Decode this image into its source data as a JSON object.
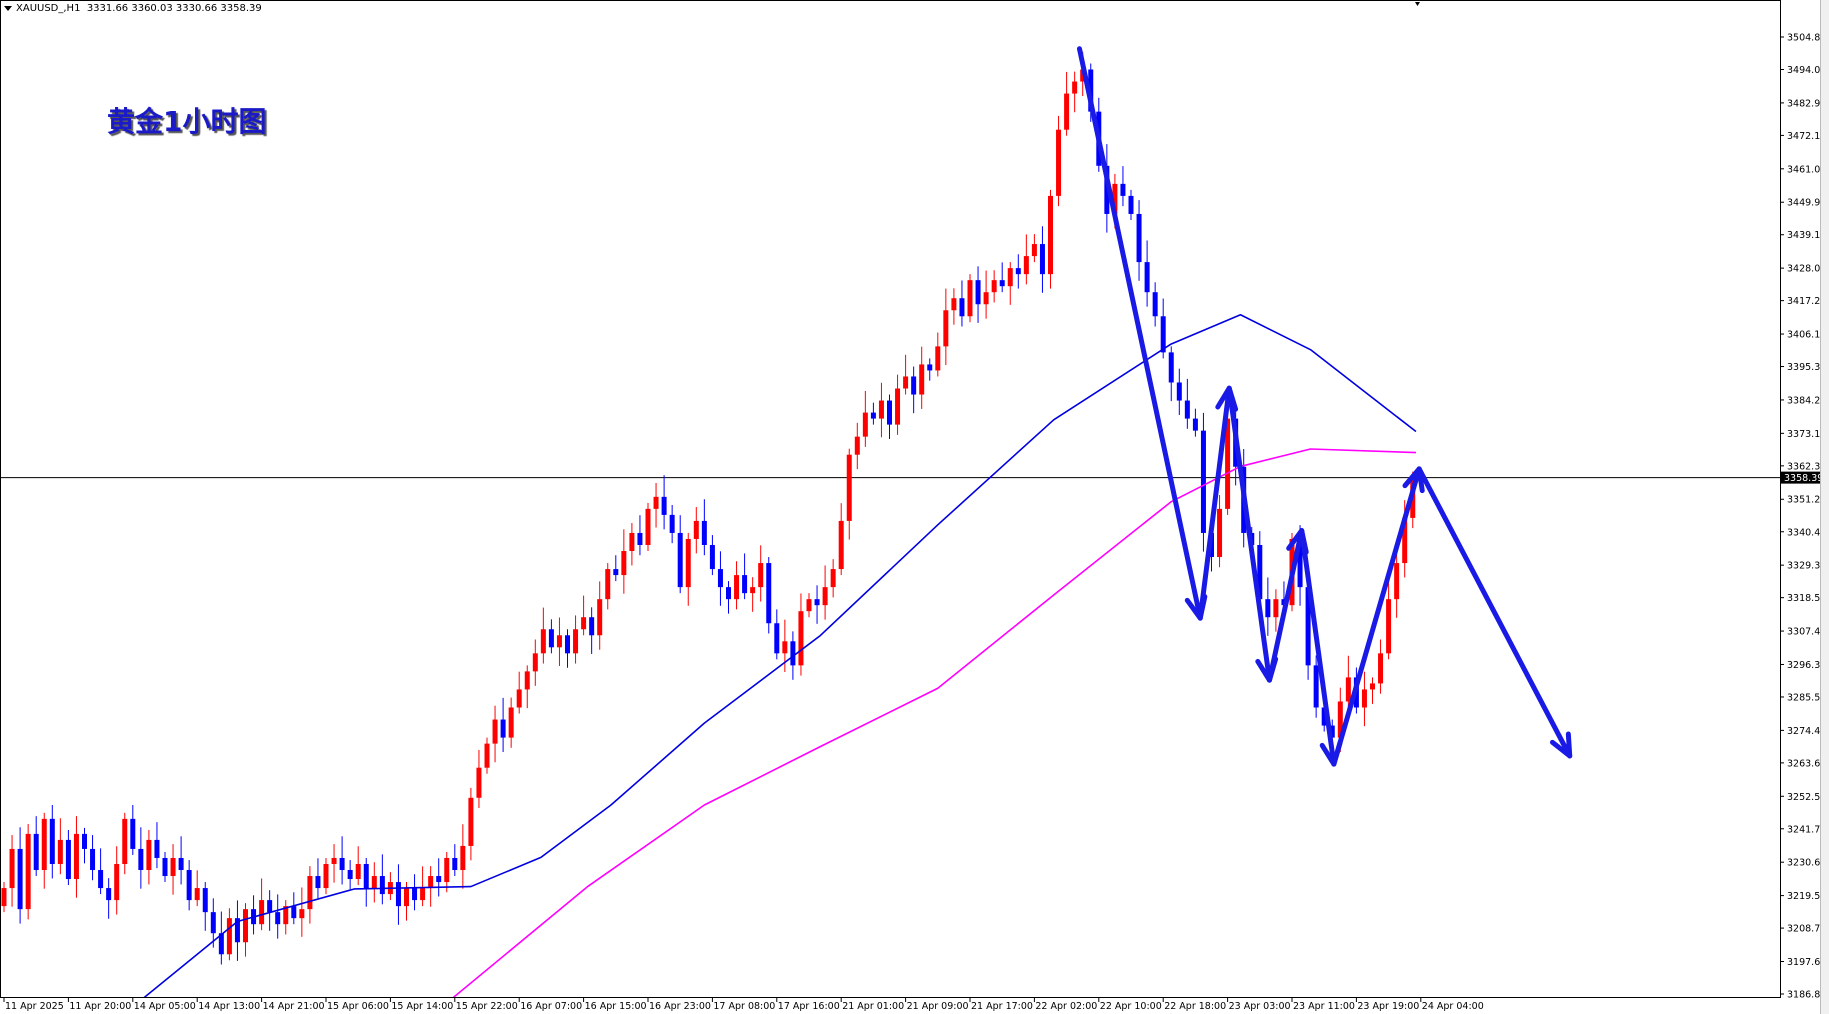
{
  "header": {
    "symbol": "XAUUSD_,H1",
    "ohlc": "3331.66 3360.03 3330.66 3358.39"
  },
  "annotation_title": "黄金1小时图",
  "colors": {
    "bull": "#ff0000",
    "bear": "#0000ff",
    "ma_fast": "#0000e0",
    "ma_slow": "#ff00ff",
    "arrows": "#1a1ae6",
    "price_line": "#000000"
  },
  "chart_data": {
    "type": "candlestick",
    "title": "",
    "ylim": [
      3186.8,
      3504.8
    ],
    "y_ticks": [
      "3504.80",
      "3494.00",
      "3482.90",
      "3472.10",
      "3461.00",
      "3449.90",
      "3439.10",
      "3428.00",
      "3417.20",
      "3406.10",
      "3395.30",
      "3384.20",
      "3373.10",
      "3362.30",
      "3351.20",
      "3340.40",
      "3329.30",
      "3318.50",
      "3307.40",
      "3296.30",
      "3285.50",
      "3274.40",
      "3263.60",
      "3252.50",
      "3241.70",
      "3230.60",
      "3219.50",
      "3208.70",
      "3197.60",
      "3186.80"
    ],
    "x_ticks": [
      "11 Apr 2025",
      "11 Apr 20:00",
      "14 Apr 05:00",
      "14 Apr 13:00",
      "14 Apr 21:00",
      "15 Apr 06:00",
      "15 Apr 14:00",
      "15 Apr 22:00",
      "16 Apr 07:00",
      "16 Apr 15:00",
      "16 Apr 23:00",
      "17 Apr 08:00",
      "17 Apr 16:00",
      "21 Apr 01:00",
      "21 Apr 09:00",
      "21 Apr 17:00",
      "22 Apr 02:00",
      "22 Apr 10:00",
      "22 Apr 18:00",
      "23 Apr 03:00",
      "23 Apr 11:00",
      "23 Apr 19:00",
      "24 Apr 04:00"
    ],
    "x_tick_every_bars": 8,
    "current_price": "3358.39",
    "closes": [
      3222,
      3235,
      3215,
      3240,
      3228,
      3245,
      3230,
      3238,
      3225,
      3240,
      3235,
      3228,
      3222,
      3218,
      3230,
      3245,
      3235,
      3228,
      3238,
      3232,
      3226,
      3232,
      3228,
      3218,
      3222,
      3214,
      3207,
      3200,
      3212,
      3204,
      3215,
      3210,
      3218,
      3214,
      3210,
      3216,
      3212,
      3215,
      3226,
      3222,
      3230,
      3232,
      3228,
      3225,
      3230,
      3222,
      3226,
      3220,
      3224,
      3216,
      3222,
      3218,
      3222,
      3226,
      3224,
      3232,
      3228,
      3236,
      3252,
      3262,
      3270,
      3278,
      3272,
      3282,
      3288,
      3294,
      3300,
      3308,
      3302,
      3306,
      3300,
      3308,
      3312,
      3306,
      3318,
      3328,
      3326,
      3334,
      3340,
      3336,
      3348,
      3352,
      3346,
      3340,
      3322,
      3338,
      3344,
      3336,
      3328,
      3322,
      3318,
      3326,
      3320,
      3322,
      3330,
      3310,
      3300,
      3304,
      3296,
      3314,
      3318,
      3316,
      3322,
      3328,
      3344,
      3366,
      3372,
      3380,
      3378,
      3384,
      3376,
      3388,
      3392,
      3386,
      3396,
      3394,
      3402,
      3414,
      3418,
      3412,
      3424,
      3416,
      3420,
      3424,
      3422,
      3428,
      3426,
      3432,
      3436,
      3426,
      3452,
      3474,
      3486,
      3490,
      3494,
      3480,
      3462,
      3446,
      3456,
      3452,
      3446,
      3430,
      3420,
      3412,
      3400,
      3390,
      3384,
      3378,
      3374,
      3340,
      3332,
      3348,
      3378,
      3362,
      3340,
      3336,
      3318,
      3312,
      3318,
      3316,
      3338,
      3322,
      3296,
      3282,
      3276,
      3272,
      3284,
      3292,
      3282,
      3288,
      3290,
      3300,
      3318,
      3330,
      3345,
      3358.39
    ],
    "moving_averages": [
      {
        "color": "#0000e0",
        "points": [
          [
            17.4,
            3185.6
          ],
          [
            29,
            3210.9
          ],
          [
            43.5,
            3221.7
          ],
          [
            58,
            3222.5
          ],
          [
            66.7,
            3232.2
          ],
          [
            75.4,
            3249.6
          ],
          [
            87,
            3276.8
          ],
          [
            101.4,
            3305.9
          ],
          [
            116,
            3342.7
          ],
          [
            130.4,
            3377.6
          ],
          [
            145,
            3402.8
          ],
          [
            153.6,
            3412.5
          ],
          [
            162.3,
            3400.9
          ],
          [
            175.4,
            3373.7
          ]
        ]
      },
      {
        "color": "#ff00ff",
        "points": [
          [
            55.8,
            3185.6
          ],
          [
            72.5,
            3222.5
          ],
          [
            87,
            3249.6
          ],
          [
            101.4,
            3269.0
          ],
          [
            116,
            3288.4
          ],
          [
            130.4,
            3319.4
          ],
          [
            145,
            3350.4
          ],
          [
            153.6,
            3362.1
          ],
          [
            162.3,
            3367.9
          ],
          [
            175.4,
            3366.7
          ]
        ]
      }
    ],
    "arrow_path": [
      [
        133.6,
        3500.9
      ],
      [
        148.6,
        3311.7
      ],
      [
        152.2,
        3388.1
      ],
      [
        157.2,
        3291.1
      ],
      [
        161.2,
        3340.8
      ],
      [
        165.2,
        3263.2
      ],
      [
        175.8,
        3361.3
      ],
      [
        194.5,
        3265.9
      ]
    ]
  }
}
